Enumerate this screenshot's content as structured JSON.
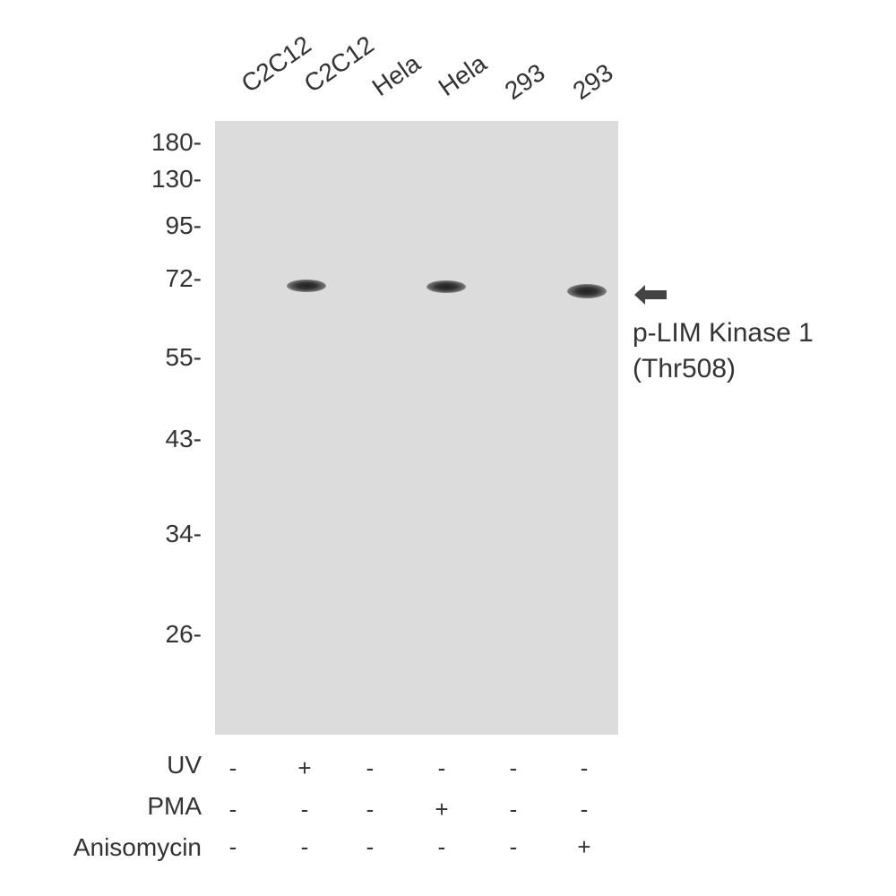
{
  "lanes": [
    "C2C12",
    "C2C12",
    "Hela",
    "Hela",
    "293",
    "293"
  ],
  "markers": [
    "180-",
    "130-",
    "95-",
    "72-",
    "55-",
    "43-",
    "34-",
    "26-"
  ],
  "target": {
    "line1": "p-LIM Kinase 1",
    "line2": "(Thr508)",
    "arrow_icon": "arrow-left-icon"
  },
  "treatments": [
    {
      "label": "UV",
      "values": [
        "-",
        "+",
        "-",
        "-",
        "-",
        "-"
      ]
    },
    {
      "label": "PMA",
      "values": [
        "-",
        "-",
        "-",
        "+",
        "-",
        "-"
      ]
    },
    {
      "label": "Anisomycin",
      "values": [
        "-",
        "-",
        "-",
        "-",
        "-",
        "+"
      ]
    }
  ],
  "band_lanes_present": [
    false,
    true,
    false,
    true,
    false,
    true
  ],
  "colors": {
    "membrane": "#dcdcdc",
    "band": "#222222",
    "text": "#333333"
  }
}
